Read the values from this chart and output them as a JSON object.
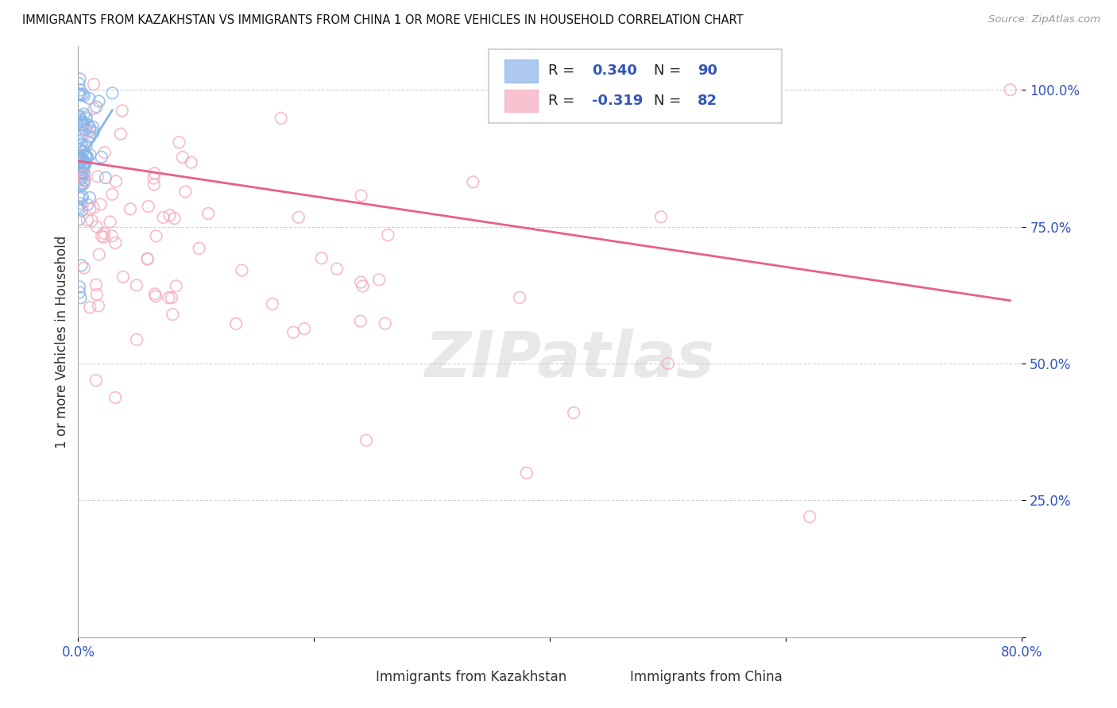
{
  "title": "IMMIGRANTS FROM KAZAKHSTAN VS IMMIGRANTS FROM CHINA 1 OR MORE VEHICLES IN HOUSEHOLD CORRELATION CHART",
  "source_text": "Source: ZipAtlas.com",
  "ylabel": "1 or more Vehicles in Household",
  "xlim": [
    0.0,
    0.8
  ],
  "ylim": [
    0.0,
    1.08
  ],
  "legend_r1_label": "R = ",
  "legend_r1_val": "0.340",
  "legend_n1_label": "  N = ",
  "legend_n1_val": "90",
  "legend_r2_label": "R = ",
  "legend_r2_val": "-0.319",
  "legend_n2_label": "  N = ",
  "legend_n2_val": "82",
  "legend_label1": "Immigrants from Kazakhstan",
  "legend_label2": "Immigrants from China",
  "color_kaz": "#8AB4E8",
  "color_china": "#F4AABC",
  "trend_color_china": "#E8608A",
  "trend_color_kaz": "#8AB4E8",
  "watermark": "ZIPatlas",
  "background_color": "#FFFFFF",
  "tick_color": "#3355BB",
  "grid_color": "#CCCCCC"
}
